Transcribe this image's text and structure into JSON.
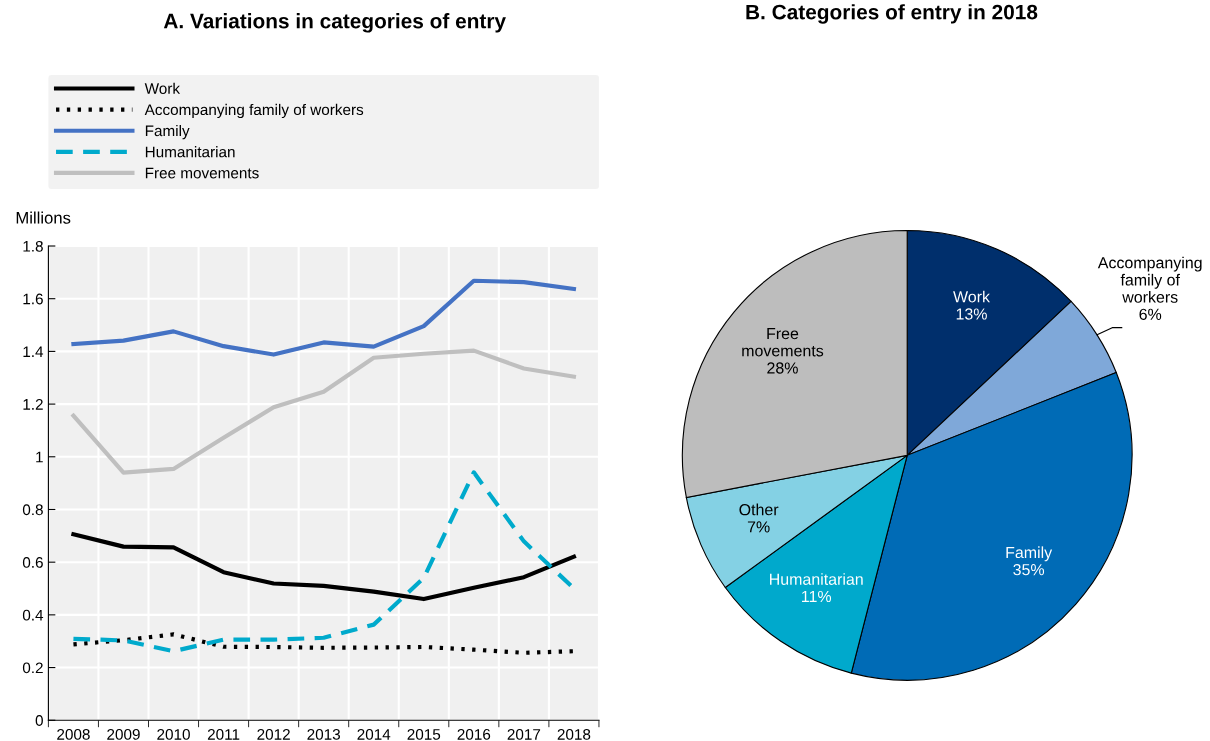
{
  "chart_data": [
    {
      "type": "line",
      "title": "A. Variations in categories of entry",
      "ylabel": "Millions",
      "categories": [
        "2008",
        "2009",
        "2010",
        "2011",
        "2012",
        "2013",
        "2014",
        "2015",
        "2016",
        "2017",
        "2018"
      ],
      "ylim": [
        0,
        1.8
      ],
      "yticks": [
        0,
        0.2,
        0.4,
        0.6,
        0.8,
        1,
        1.2,
        1.4,
        1.6,
        1.8
      ],
      "grid": true,
      "legend": "top",
      "series": [
        {
          "name": "Work",
          "color": "#000000",
          "line_style": "solid",
          "values": [
            0.706,
            0.659,
            0.656,
            0.562,
            0.519,
            0.51,
            0.488,
            0.46,
            0.503,
            0.543,
            0.621
          ]
        },
        {
          "name": "Accompanying family of workers",
          "color": "#000000",
          "line_style": "dotted",
          "values": [
            0.288,
            0.304,
            0.326,
            0.279,
            0.278,
            0.275,
            0.276,
            0.278,
            0.268,
            0.256,
            0.262
          ]
        },
        {
          "name": "Family",
          "color": "#4472c4",
          "line_style": "solid",
          "values": [
            1.428,
            1.441,
            1.476,
            1.42,
            1.388,
            1.434,
            1.418,
            1.496,
            1.668,
            1.663,
            1.637
          ]
        },
        {
          "name": "Humanitarian",
          "color": "#00aacc",
          "line_style": "dashed",
          "values": [
            0.309,
            0.303,
            0.262,
            0.306,
            0.306,
            0.313,
            0.363,
            0.54,
            0.941,
            0.679,
            0.5
          ]
        },
        {
          "name": "Free movements",
          "color": "#bfbfbf",
          "line_style": "solid",
          "values": [
            1.156,
            0.94,
            0.954,
            1.072,
            1.188,
            1.247,
            1.376,
            1.391,
            1.403,
            1.335,
            1.304
          ]
        }
      ]
    },
    {
      "type": "pie",
      "title": "B. Categories of entry in 2018",
      "categories": [
        "Work",
        "Accompanying\nfamily of\nworkers",
        "Family",
        "Humanitarian",
        "Other",
        "Free\nmovements"
      ],
      "values": [
        13,
        6,
        35,
        11,
        7,
        28
      ],
      "value_labels": [
        "13%",
        "6%",
        "35%",
        "11%",
        "7%",
        "28%"
      ],
      "colors": [
        "#002f6c",
        "#7fa8d9",
        "#006bb6",
        "#00a9cc",
        "#84d1e4",
        "#bdbdbd"
      ]
    }
  ]
}
